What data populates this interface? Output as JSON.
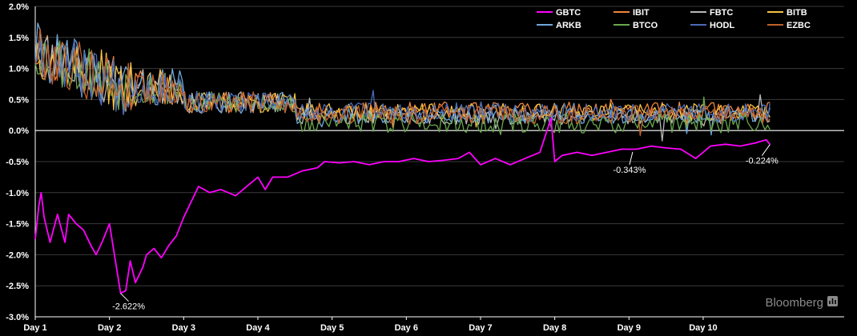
{
  "chart_data": {
    "type": "line",
    "title": "",
    "xlabel": "",
    "ylabel": "",
    "ylim": [
      -3.0,
      2.0
    ],
    "y_ticks": [
      2.0,
      1.5,
      1.0,
      0.5,
      0.0,
      -0.5,
      -1.0,
      -1.5,
      -2.0,
      -2.5,
      -3.0
    ],
    "y_tick_labels": [
      "2.0%",
      "1.5%",
      "1.0%",
      "0.5%",
      "0.0%",
      "-0.5%",
      "-1.0%",
      "-1.5%",
      "-2.0%",
      "-2.5%",
      "-3.0%"
    ],
    "x_range": [
      1,
      11.9
    ],
    "x_ticks": [
      1,
      2,
      3,
      4,
      5,
      6,
      7,
      8,
      9,
      10
    ],
    "x_tick_labels": [
      "Day 1",
      "Day 2",
      "Day 3",
      "Day 4",
      "Day 5",
      "Day 6",
      "Day 7",
      "Day 8",
      "Day 9",
      "Day 10"
    ],
    "grid": "horizontal",
    "legend_position": "top-right",
    "series": [
      {
        "name": "GBTC",
        "color": "#ff00ff",
        "points": [
          [
            1.0,
            -1.75
          ],
          [
            1.05,
            -1.2
          ],
          [
            1.08,
            -1.0
          ],
          [
            1.12,
            -1.4
          ],
          [
            1.2,
            -1.8
          ],
          [
            1.3,
            -1.35
          ],
          [
            1.4,
            -1.8
          ],
          [
            1.45,
            -1.35
          ],
          [
            1.55,
            -1.5
          ],
          [
            1.65,
            -1.6
          ],
          [
            1.75,
            -1.85
          ],
          [
            1.82,
            -2.0
          ],
          [
            1.9,
            -1.8
          ],
          [
            2.0,
            -1.5
          ],
          [
            2.08,
            -2.1
          ],
          [
            2.15,
            -2.62
          ],
          [
            2.22,
            -2.58
          ],
          [
            2.28,
            -2.1
          ],
          [
            2.35,
            -2.45
          ],
          [
            2.45,
            -2.2
          ],
          [
            2.5,
            -2.0
          ],
          [
            2.6,
            -1.9
          ],
          [
            2.7,
            -2.05
          ],
          [
            2.8,
            -1.85
          ],
          [
            2.9,
            -1.7
          ],
          [
            3.0,
            -1.4
          ],
          [
            3.1,
            -1.15
          ],
          [
            3.2,
            -0.9
          ],
          [
            3.35,
            -1.0
          ],
          [
            3.5,
            -0.95
          ],
          [
            3.7,
            -1.05
          ],
          [
            3.9,
            -0.85
          ],
          [
            4.0,
            -0.75
          ],
          [
            4.1,
            -0.95
          ],
          [
            4.2,
            -0.75
          ],
          [
            4.4,
            -0.75
          ],
          [
            4.6,
            -0.65
          ],
          [
            4.8,
            -0.6
          ],
          [
            4.9,
            -0.5
          ],
          [
            5.1,
            -0.52
          ],
          [
            5.3,
            -0.5
          ],
          [
            5.5,
            -0.55
          ],
          [
            5.7,
            -0.5
          ],
          [
            5.9,
            -0.5
          ],
          [
            6.1,
            -0.45
          ],
          [
            6.3,
            -0.5
          ],
          [
            6.5,
            -0.48
          ],
          [
            6.7,
            -0.45
          ],
          [
            6.85,
            -0.35
          ],
          [
            7.0,
            -0.55
          ],
          [
            7.2,
            -0.45
          ],
          [
            7.4,
            -0.55
          ],
          [
            7.6,
            -0.45
          ],
          [
            7.8,
            -0.35
          ],
          [
            7.95,
            0.2
          ],
          [
            8.0,
            -0.5
          ],
          [
            8.1,
            -0.4
          ],
          [
            8.3,
            -0.35
          ],
          [
            8.5,
            -0.4
          ],
          [
            8.7,
            -0.35
          ],
          [
            8.9,
            -0.3
          ],
          [
            9.1,
            -0.3
          ],
          [
            9.3,
            -0.25
          ],
          [
            9.5,
            -0.28
          ],
          [
            9.7,
            -0.3
          ],
          [
            9.9,
            -0.45
          ],
          [
            10.1,
            -0.25
          ],
          [
            10.3,
            -0.22
          ],
          [
            10.5,
            -0.25
          ],
          [
            10.7,
            -0.2
          ],
          [
            10.85,
            -0.15
          ],
          [
            10.9,
            -0.224
          ]
        ]
      },
      {
        "name": "IBIT",
        "color": "#f0863a",
        "level": 0.32,
        "noise": 0.14,
        "seed": 11
      },
      {
        "name": "FBTC",
        "color": "#b8b8b8",
        "level": 0.22,
        "noise": 0.12,
        "seed": 23
      },
      {
        "name": "BITB",
        "color": "#f5c242",
        "level": 0.3,
        "noise": 0.14,
        "seed": 37
      },
      {
        "name": "ARKB",
        "color": "#6fa8dc",
        "level": 0.24,
        "noise": 0.13,
        "seed": 41
      },
      {
        "name": "BTCO",
        "color": "#6aa84f",
        "level": 0.12,
        "noise": 0.16,
        "seed": 53
      },
      {
        "name": "HODL",
        "color": "#4a6bb8",
        "level": 0.3,
        "noise": 0.15,
        "seed": 67
      },
      {
        "name": "EZBC",
        "color": "#c0602b",
        "level": 0.26,
        "noise": 0.15,
        "seed": 79
      }
    ],
    "annotations": [
      {
        "text": "-2.622%",
        "x": 2.15,
        "y": -2.622
      },
      {
        "text": "-0.343%",
        "x": 9.05,
        "y": -0.343
      },
      {
        "text": "-0.224%",
        "x": 10.9,
        "y": -0.224
      }
    ]
  },
  "brand": {
    "name": "Bloomberg"
  }
}
